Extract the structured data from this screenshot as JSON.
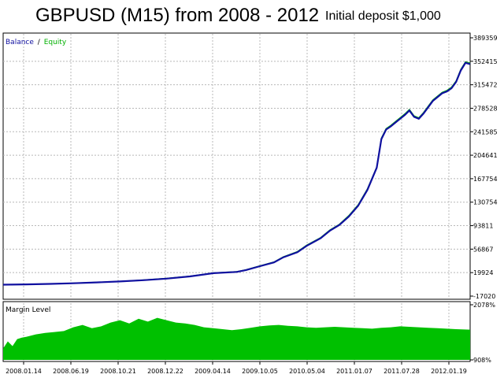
{
  "title": "GBPUSD (M15) from 2008 - 2012",
  "subtitle": "Initial deposit $1,000",
  "colors": {
    "balance": "#1010a0",
    "equity": "#00b000",
    "margin_fill": "#00c000",
    "grid": "#b8b8b8",
    "axis": "#000000"
  },
  "chart_data": [
    {
      "type": "line",
      "legend": {
        "balance_label": "Balance",
        "separator": "/",
        "equity_label": "Equity",
        "placement": "top-left"
      },
      "ylim": [
        -17020,
        389359
      ],
      "y_ticks": [
        "389359",
        "352415",
        "315472",
        "278528",
        "241585",
        "204641",
        "167754",
        "130754",
        "93811",
        "56867",
        "19924",
        "-17020"
      ],
      "grid": true,
      "series": [
        {
          "name": "Balance",
          "x": [
            0,
            5,
            10,
            15,
            20,
            25,
            30,
            35,
            40,
            45,
            50,
            52,
            55,
            58,
            60,
            63,
            65,
            68,
            70,
            72,
            74,
            76,
            78,
            80,
            81,
            82,
            83,
            84,
            85,
            86,
            87,
            88,
            89,
            90,
            91,
            92,
            94,
            95,
            96,
            97,
            98,
            99,
            100
          ],
          "y": [
            1000,
            1500,
            2200,
            3200,
            4500,
            6000,
            8000,
            10500,
            14000,
            19000,
            21000,
            24000,
            30000,
            36000,
            44000,
            52000,
            62000,
            74000,
            86000,
            95000,
            108000,
            125000,
            150000,
            185000,
            230000,
            245000,
            250000,
            256000,
            262000,
            268000,
            275000,
            265000,
            262000,
            270000,
            280000,
            290000,
            302000,
            305000,
            310000,
            320000,
            338000,
            350000,
            348000
          ]
        },
        {
          "name": "Equity",
          "x": [
            0,
            5,
            10,
            15,
            20,
            25,
            30,
            35,
            40,
            45,
            50,
            52,
            55,
            58,
            60,
            63,
            65,
            68,
            70,
            72,
            74,
            76,
            78,
            80,
            81,
            82,
            83,
            84,
            85,
            86,
            87,
            88,
            89,
            90,
            91,
            92,
            94,
            95,
            96,
            97,
            98,
            99,
            100
          ],
          "y": [
            1000,
            1600,
            2300,
            3300,
            4600,
            6100,
            8200,
            10800,
            14300,
            19400,
            21400,
            24500,
            30600,
            36600,
            44800,
            53000,
            63000,
            75000,
            87000,
            96000,
            109500,
            126500,
            151500,
            186000,
            231500,
            246500,
            251500,
            257500,
            263500,
            269500,
            276500,
            266500,
            263500,
            271500,
            281500,
            291500,
            303500,
            306500,
            311500,
            321500,
            339500,
            351500,
            349500
          ]
        }
      ]
    },
    {
      "type": "area",
      "label": "Margin Level",
      "ylim": [
        "908%",
        "2078%"
      ],
      "y_ticks": [
        "2078%",
        "908%"
      ],
      "x_ticks": [
        "2008.01.14",
        "2008.06.19",
        "2008.10.21",
        "2008.12.22",
        "2009.04.14",
        "2009.10.05",
        "2010.05.04",
        "2011.01.07",
        "2011.07.28",
        "2012.01.19"
      ],
      "series": [
        {
          "name": "Margin Level",
          "x": [
            0,
            1,
            2,
            3,
            4,
            5,
            7,
            9,
            11,
            13,
            15,
            17,
            19,
            21,
            23,
            25,
            27,
            29,
            31,
            33,
            35,
            37,
            39,
            41,
            43,
            45,
            47,
            49,
            51,
            53,
            55,
            57,
            59,
            61,
            63,
            65,
            67,
            69,
            71,
            73,
            75,
            77,
            79,
            81,
            83,
            85,
            87,
            89,
            91,
            93,
            95,
            97,
            100
          ],
          "y": [
            1150,
            1300,
            1200,
            1350,
            1380,
            1400,
            1450,
            1480,
            1500,
            1520,
            1600,
            1650,
            1580,
            1620,
            1700,
            1750,
            1680,
            1780,
            1720,
            1800,
            1750,
            1700,
            1680,
            1650,
            1600,
            1580,
            1560,
            1540,
            1560,
            1590,
            1620,
            1640,
            1650,
            1630,
            1620,
            1600,
            1590,
            1600,
            1610,
            1600,
            1590,
            1580,
            1570,
            1590,
            1600,
            1620,
            1610,
            1600,
            1590,
            1580,
            1570,
            1560,
            1550
          ]
        }
      ]
    }
  ]
}
